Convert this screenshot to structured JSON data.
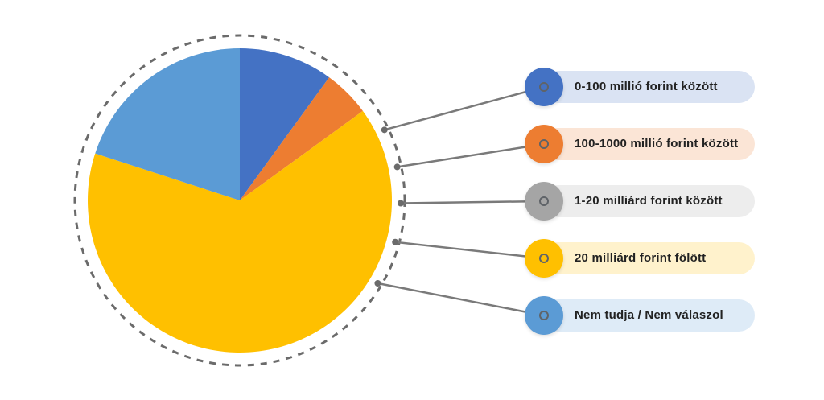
{
  "chart_data": {
    "type": "pie",
    "categories": [
      "0-100 millió forint között",
      "100-1000 millió forint között",
      "1-20 milliárd forint között",
      "20 milliárd forint fölött",
      "Nem tudja / Nem válaszol"
    ],
    "values": [
      10,
      5,
      0,
      65,
      20
    ],
    "colors": [
      "#4472c4",
      "#ed7d31",
      "#a5a5a5",
      "#ffc000",
      "#5b9bd5"
    ],
    "pill_colors": [
      "#dae3f3",
      "#fbe5d6",
      "#ededed",
      "#fff2cc",
      "#deebf7"
    ],
    "start_angle_deg": 0,
    "direction": "clockwise",
    "legend_position": "right"
  }
}
